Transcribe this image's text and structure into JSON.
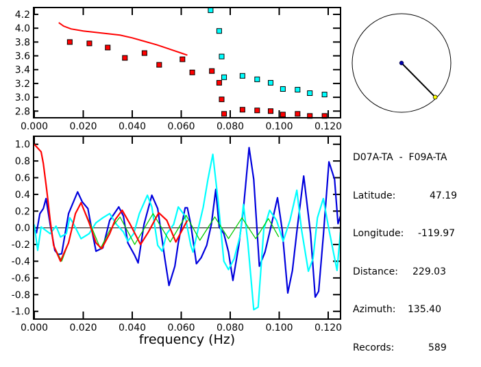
{
  "chart_data": [
    {
      "type": "scatter",
      "title": "",
      "xlabel": "",
      "ylabel": "",
      "xlim": [
        0.0,
        0.125
      ],
      "ylim": [
        2.72,
        4.28
      ],
      "xticks": [
        "0.000",
        "0.020",
        "0.040",
        "0.060",
        "0.080",
        "0.100",
        "0.120"
      ],
      "yticks": [
        "2.8",
        "3.0",
        "3.2",
        "3.4",
        "3.6",
        "3.8",
        "4.0",
        "4.2"
      ],
      "series": [
        {
          "name": "red-points",
          "color": "#ff0000",
          "type": "scatter",
          "x": [
            0.0145,
            0.0225,
            0.03,
            0.037,
            0.045,
            0.051,
            0.0605,
            0.0645,
            0.0725,
            0.0755,
            0.0765,
            0.0775,
            0.085,
            0.091,
            0.0965,
            0.1015,
            0.1075,
            0.1125,
            0.1185
          ],
          "y": [
            3.8,
            3.78,
            3.72,
            3.57,
            3.64,
            3.47,
            3.55,
            3.36,
            3.38,
            3.21,
            2.97,
            2.76,
            2.82,
            2.81,
            2.8,
            2.75,
            2.76,
            2.73,
            2.73
          ]
        },
        {
          "name": "cyan-points",
          "color": "#00ffff",
          "type": "scatter",
          "x": [
            0.072,
            0.0755,
            0.0765,
            0.0775,
            0.085,
            0.091,
            0.0965,
            0.1015,
            0.1075,
            0.1125,
            0.1185
          ],
          "y": [
            4.26,
            3.96,
            3.59,
            3.29,
            3.31,
            3.26,
            3.21,
            3.12,
            3.11,
            3.06,
            3.04
          ]
        },
        {
          "name": "red-curve",
          "color": "#ff0000",
          "type": "line",
          "x": [
            0.01,
            0.012,
            0.015,
            0.02,
            0.025,
            0.03,
            0.035,
            0.04,
            0.045,
            0.05,
            0.055,
            0.06,
            0.0625
          ],
          "y": [
            4.08,
            4.03,
            3.99,
            3.96,
            3.94,
            3.92,
            3.9,
            3.86,
            3.81,
            3.76,
            3.7,
            3.64,
            3.61
          ]
        }
      ]
    },
    {
      "type": "line",
      "title": "",
      "xlabel": "frequency (Hz)",
      "ylabel": "",
      "xlim": [
        0.0,
        0.125
      ],
      "ylim": [
        -1.1,
        1.1
      ],
      "xticks": [
        "0.000",
        "0.020",
        "0.040",
        "0.060",
        "0.080",
        "0.100",
        "0.120"
      ],
      "yticks": [
        "1.0",
        "0.8",
        "0.6",
        "0.4",
        "0.2",
        "0.0",
        "-0.2",
        "-0.4",
        "-0.6",
        "-0.8",
        "-1.0"
      ],
      "series": [
        {
          "name": "blue",
          "color": "#0000dd",
          "x": [
            0,
            0.0009,
            0.0023,
            0.0037,
            0.0048,
            0.0065,
            0.0084,
            0.0098,
            0.0112,
            0.014,
            0.0177,
            0.0196,
            0.0219,
            0.0238,
            0.0252,
            0.028,
            0.0308,
            0.0345,
            0.0364,
            0.0382,
            0.041,
            0.0424,
            0.0448,
            0.048,
            0.0504,
            0.0532,
            0.055,
            0.0574,
            0.0588,
            0.0616,
            0.0625,
            0.0639,
            0.0662,
            0.0681,
            0.0704,
            0.0723,
            0.0741,
            0.0755,
            0.0774,
            0.0793,
            0.0811,
            0.0835,
            0.0854,
            0.0877,
            0.0896,
            0.0919,
            0.0942,
            0.097,
            0.0993,
            0.1012,
            0.1035,
            0.1054,
            0.1073,
            0.11,
            0.1128,
            0.1147,
            0.1161,
            0.118,
            0.1203,
            0.1226,
            0.124,
            0.125
          ],
          "y": [
            0,
            -0.06,
            0.17,
            0.23,
            0.35,
            0.04,
            -0.27,
            -0.32,
            -0.31,
            0.17,
            0.43,
            0.31,
            0.23,
            -0.07,
            -0.28,
            -0.24,
            0.09,
            0.25,
            0.14,
            -0.18,
            -0.33,
            -0.42,
            0.04,
            0.39,
            0.23,
            -0.35,
            -0.69,
            -0.46,
            -0.18,
            0.24,
            0.24,
            0.04,
            -0.43,
            -0.36,
            -0.21,
            0.04,
            0.46,
            0.01,
            -0.07,
            -0.29,
            -0.63,
            -0.21,
            0.23,
            0.96,
            0.58,
            -0.46,
            -0.29,
            0.06,
            0.36,
            -0.02,
            -0.78,
            -0.51,
            -0.02,
            0.62,
            -0.07,
            -0.83,
            -0.76,
            -0.1,
            0.79,
            0.58,
            0.05,
            0.14
          ]
        },
        {
          "name": "cyan",
          "color": "#00ffff",
          "x": [
            0,
            0.0014,
            0.0028,
            0.0065,
            0.0089,
            0.0107,
            0.0131,
            0.0145,
            0.0158,
            0.0191,
            0.0224,
            0.0252,
            0.028,
            0.0308,
            0.0336,
            0.0364,
            0.0382,
            0.0406,
            0.0429,
            0.0462,
            0.048,
            0.0504,
            0.0522,
            0.0541,
            0.0569,
            0.0588,
            0.0616,
            0.0639,
            0.0648,
            0.0671,
            0.069,
            0.0709,
            0.0729,
            0.0751,
            0.0774,
            0.0793,
            0.0816,
            0.084,
            0.0854,
            0.0872,
            0.0896,
            0.0914,
            0.0937,
            0.0961,
            0.0989,
            0.1016,
            0.1044,
            0.1072,
            0.1091,
            0.1119,
            0.1138,
            0.1156,
            0.118,
            0.1203,
            0.1236,
            0.125
          ],
          "y": [
            0.04,
            -0.27,
            0.01,
            -0.07,
            0.02,
            -0.11,
            -0.07,
            0.12,
            0.06,
            -0.13,
            -0.07,
            0.06,
            0.12,
            0.17,
            0.04,
            -0.05,
            -0.16,
            -0.07,
            0.17,
            0.39,
            0.25,
            -0.21,
            -0.28,
            -0.07,
            0.04,
            0.25,
            0.14,
            -0.21,
            -0.29,
            0.01,
            0.25,
            0.58,
            0.88,
            0.31,
            -0.4,
            -0.5,
            -0.37,
            -0.1,
            0.28,
            -0.18,
            -0.98,
            -0.95,
            -0.02,
            0.21,
            0.09,
            -0.16,
            0.09,
            0.45,
            -0.02,
            -0.52,
            -0.37,
            0.12,
            0.35,
            -0.02,
            -0.51,
            -0.05
          ]
        },
        {
          "name": "green",
          "color": "#00cc00",
          "x": [
            0,
            0.0028,
            0.0037,
            0.0051,
            0.0065,
            0.0079,
            0.0112,
            0.014,
            0.0168,
            0.019,
            0.0224,
            0.027,
            0.031,
            0.035,
            0.041,
            0.0485,
            0.0555,
            0.062,
            0.0676,
            0.0737,
            0.0793,
            0.0848,
            0.0904,
            0.0956,
            0.0998
          ],
          "y": [
            1.0,
            0.91,
            0.77,
            0.45,
            0.09,
            -0.21,
            -0.4,
            -0.18,
            0.17,
            0.3,
            0.08,
            -0.25,
            -0.02,
            0.13,
            -0.2,
            0.17,
            -0.17,
            0.15,
            -0.15,
            0.13,
            -0.13,
            0.12,
            -0.13,
            0.11,
            -0.11
          ]
        },
        {
          "name": "red",
          "color": "#ff0000",
          "x": [
            0,
            0.0028,
            0.0037,
            0.0051,
            0.0065,
            0.0079,
            0.0107,
            0.014,
            0.0168,
            0.0191,
            0.0224,
            0.0252,
            0.0275,
            0.0308,
            0.0331,
            0.0359,
            0.0392,
            0.0434,
            0.0466,
            0.0508,
            0.0541,
            0.0578,
            0.0625
          ],
          "y": [
            1.0,
            0.91,
            0.77,
            0.45,
            0.09,
            -0.21,
            -0.4,
            -0.18,
            0.17,
            0.3,
            0.06,
            -0.18,
            -0.25,
            -0.07,
            0.1,
            0.21,
            0.04,
            -0.2,
            -0.05,
            0.18,
            0.09,
            -0.17,
            0.09
          ]
        }
      ]
    }
  ],
  "map": {
    "azimuth_deg": 135.4,
    "station_color": "#0000aa",
    "target_color": "#ffff00"
  },
  "info": {
    "pair": "D07A-TA  -  F09A-TA",
    "latitude_label": "Latitude:",
    "latitude": "47.19",
    "longitude_label": "Longitude:",
    "longitude": "-119.97",
    "distance_label": "Distance:",
    "distance": "229.03",
    "azimuth_label": "Azimuth:",
    "azimuth": "135.40",
    "records_label": "Records:",
    "records": "589"
  }
}
